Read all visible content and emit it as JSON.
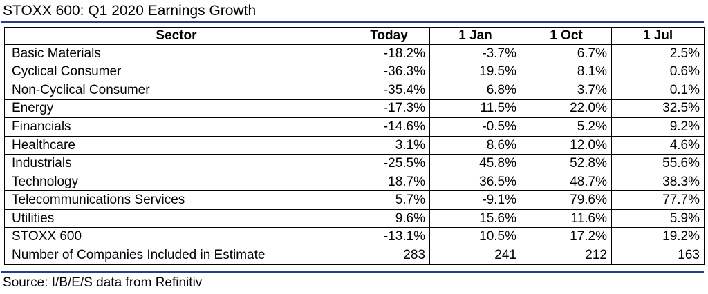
{
  "title": "STOXX 600: Q1 2020 Earnings Growth",
  "table": {
    "headers": [
      "Sector",
      "Today",
      "1 Jan",
      "1 Oct",
      "1 Jul"
    ],
    "rows": [
      [
        "Basic Materials",
        "-18.2%",
        "-3.7%",
        "6.7%",
        "2.5%"
      ],
      [
        "Cyclical Consumer",
        "-36.3%",
        "19.5%",
        "8.1%",
        "0.6%"
      ],
      [
        "Non-Cyclical Consumer",
        "-35.4%",
        "6.8%",
        "3.7%",
        "0.1%"
      ],
      [
        "Energy",
        "-17.3%",
        "11.5%",
        "22.0%",
        "32.5%"
      ],
      [
        "Financials",
        "-14.6%",
        "-0.5%",
        "5.2%",
        "9.2%"
      ],
      [
        "Healthcare",
        "3.1%",
        "8.6%",
        "12.0%",
        "4.6%"
      ],
      [
        "Industrials",
        "-25.5%",
        "45.8%",
        "52.8%",
        "55.6%"
      ],
      [
        "Technology",
        "18.7%",
        "36.5%",
        "48.7%",
        "38.3%"
      ],
      [
        "Telecommunications Services",
        "5.7%",
        "-9.1%",
        "79.6%",
        "77.7%"
      ],
      [
        "Utilities",
        "9.6%",
        "15.6%",
        "11.6%",
        "5.9%"
      ],
      [
        "STOXX 600",
        "-13.1%",
        "10.5%",
        "17.2%",
        "19.2%"
      ],
      [
        "Number of Companies Included in Estimate",
        "283",
        "241",
        "212",
        "163"
      ]
    ]
  },
  "source": "Source: I/B/E/S data from Refinitiv",
  "colors": {
    "rule": "#2b3a8f",
    "border": "#000000",
    "text": "#000000"
  }
}
